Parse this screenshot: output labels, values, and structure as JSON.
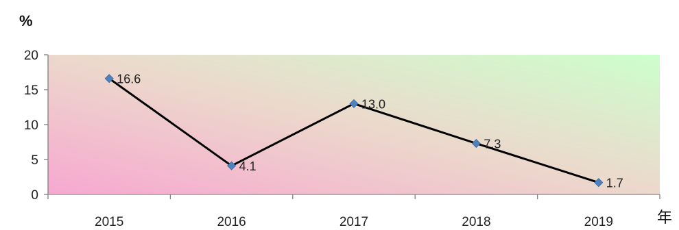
{
  "chart_data": {
    "type": "line",
    "title": "",
    "xlabel": "年",
    "ylabel": "%",
    "categories": [
      "2015",
      "2016",
      "2017",
      "2018",
      "2019"
    ],
    "values": [
      16.6,
      4.1,
      13.0,
      7.3,
      1.7
    ],
    "data_labels": [
      "16.6",
      "4.1",
      "13.0",
      "7.3",
      "1.7"
    ],
    "yticks": [
      "0",
      "5",
      "10",
      "15",
      "20"
    ],
    "ylim": [
      0,
      20
    ],
    "grid": false,
    "legend": "none",
    "colors": {
      "line": "#000000",
      "marker": "#4f81bd",
      "axis": "#7f7f7f",
      "bg_pink": "#f7a8d0",
      "bg_green": "#ccffcc"
    }
  }
}
